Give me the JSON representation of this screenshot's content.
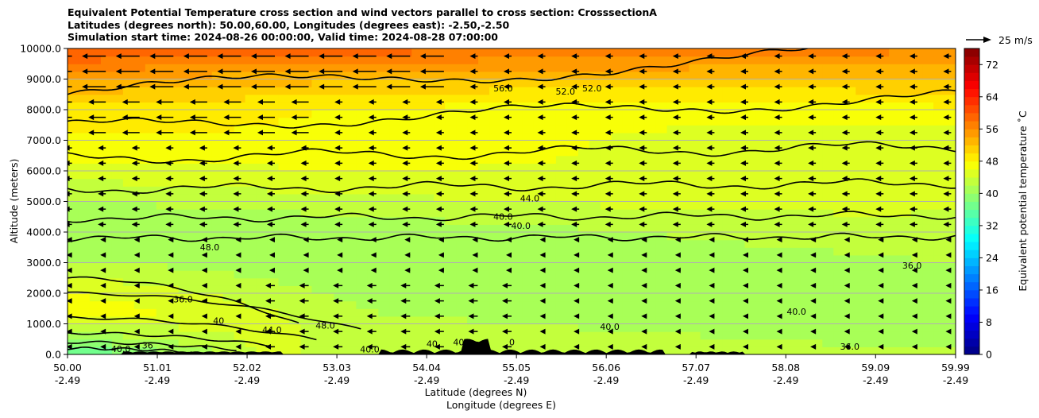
{
  "chart_data": {
    "type": "cross-section contour with wind vectors",
    "title_lines": [
      "Equivalent Potential Temperature cross section and wind vectors parallel to cross section: CrosssectionA",
      "Latitudes (degrees north): 50.00,60.00, Longitudes (degrees east): -2.50,-2.50",
      "Simulation start time: 2024-08-26 00:00:00, Valid time: 2024-08-28 07:00:00"
    ],
    "ylabel": "Altitude (meters)",
    "xlabel_lat": "Latitude (degrees N)",
    "xlabel_lon": "Longitude (degrees E)",
    "ylim": [
      0,
      10000
    ],
    "yticks": [
      "0.0",
      "1000.0",
      "2000.0",
      "3000.0",
      "4000.0",
      "5000.0",
      "6000.0",
      "7000.0",
      "8000.0",
      "9000.0",
      "10000.0"
    ],
    "xlim": [
      50.0,
      59.99
    ],
    "xticks_lat": [
      "50.00",
      "51.01",
      "52.02",
      "53.03",
      "54.04",
      "55.05",
      "56.06",
      "57.07",
      "58.08",
      "59.09",
      "59.99"
    ],
    "xticks_lon": [
      "-2.49",
      "-2.49",
      "-2.49",
      "-2.49",
      "-2.49",
      "-2.49",
      "-2.49",
      "-2.49",
      "-2.49",
      "-2.49",
      "-2.49"
    ],
    "horizontal_grid": true,
    "colorbar": {
      "label": "Equivalent potential temperature $^\\circ$C",
      "label_display": "Equivalent potential temperature ˚C",
      "min": 0,
      "max": 76,
      "step": 2,
      "ticks": [
        "0",
        "8",
        "16",
        "24",
        "32",
        "40",
        "48",
        "56",
        "64",
        "72"
      ],
      "colormap": "jet"
    },
    "quiver_key": {
      "label": "25 m/s",
      "value": 25
    },
    "contour_labels": [
      {
        "text": "56.0",
        "lat": 54.9,
        "alt": 8600
      },
      {
        "text": "52.0",
        "lat": 55.6,
        "alt": 8500
      },
      {
        "text": "52.0",
        "lat": 55.9,
        "alt": 8600
      },
      {
        "text": "44.0",
        "lat": 55.2,
        "alt": 5000
      },
      {
        "text": "40.0",
        "lat": 54.9,
        "alt": 4400
      },
      {
        "text": "40.0",
        "lat": 55.1,
        "alt": 4100
      },
      {
        "text": "48.0",
        "lat": 51.6,
        "alt": 3400
      },
      {
        "text": "36.0",
        "lat": 51.3,
        "alt": 1700
      },
      {
        "text": "40",
        "lat": 51.7,
        "alt": 1000
      },
      {
        "text": "44.0",
        "lat": 52.3,
        "alt": 700
      },
      {
        "text": "48.0",
        "lat": 52.9,
        "alt": 850
      },
      {
        "text": "40.0",
        "lat": 56.1,
        "alt": 800
      },
      {
        "text": "40.0",
        "lat": 58.2,
        "alt": 1300
      },
      {
        "text": "36.0",
        "lat": 59.5,
        "alt": 2800
      },
      {
        "text": "36.0",
        "lat": 58.8,
        "alt": 150
      },
      {
        "text": "40.0",
        "lat": 50.6,
        "alt": 80
      },
      {
        "text": "36",
        "lat": 50.9,
        "alt": 200
      },
      {
        "text": "40.0",
        "lat": 53.4,
        "alt": 60
      },
      {
        "text": "40",
        "lat": 54.1,
        "alt": 250
      },
      {
        "text": "40",
        "lat": 54.4,
        "alt": 300
      },
      {
        "text": "0",
        "lat": 55.0,
        "alt": 300
      }
    ]
  }
}
